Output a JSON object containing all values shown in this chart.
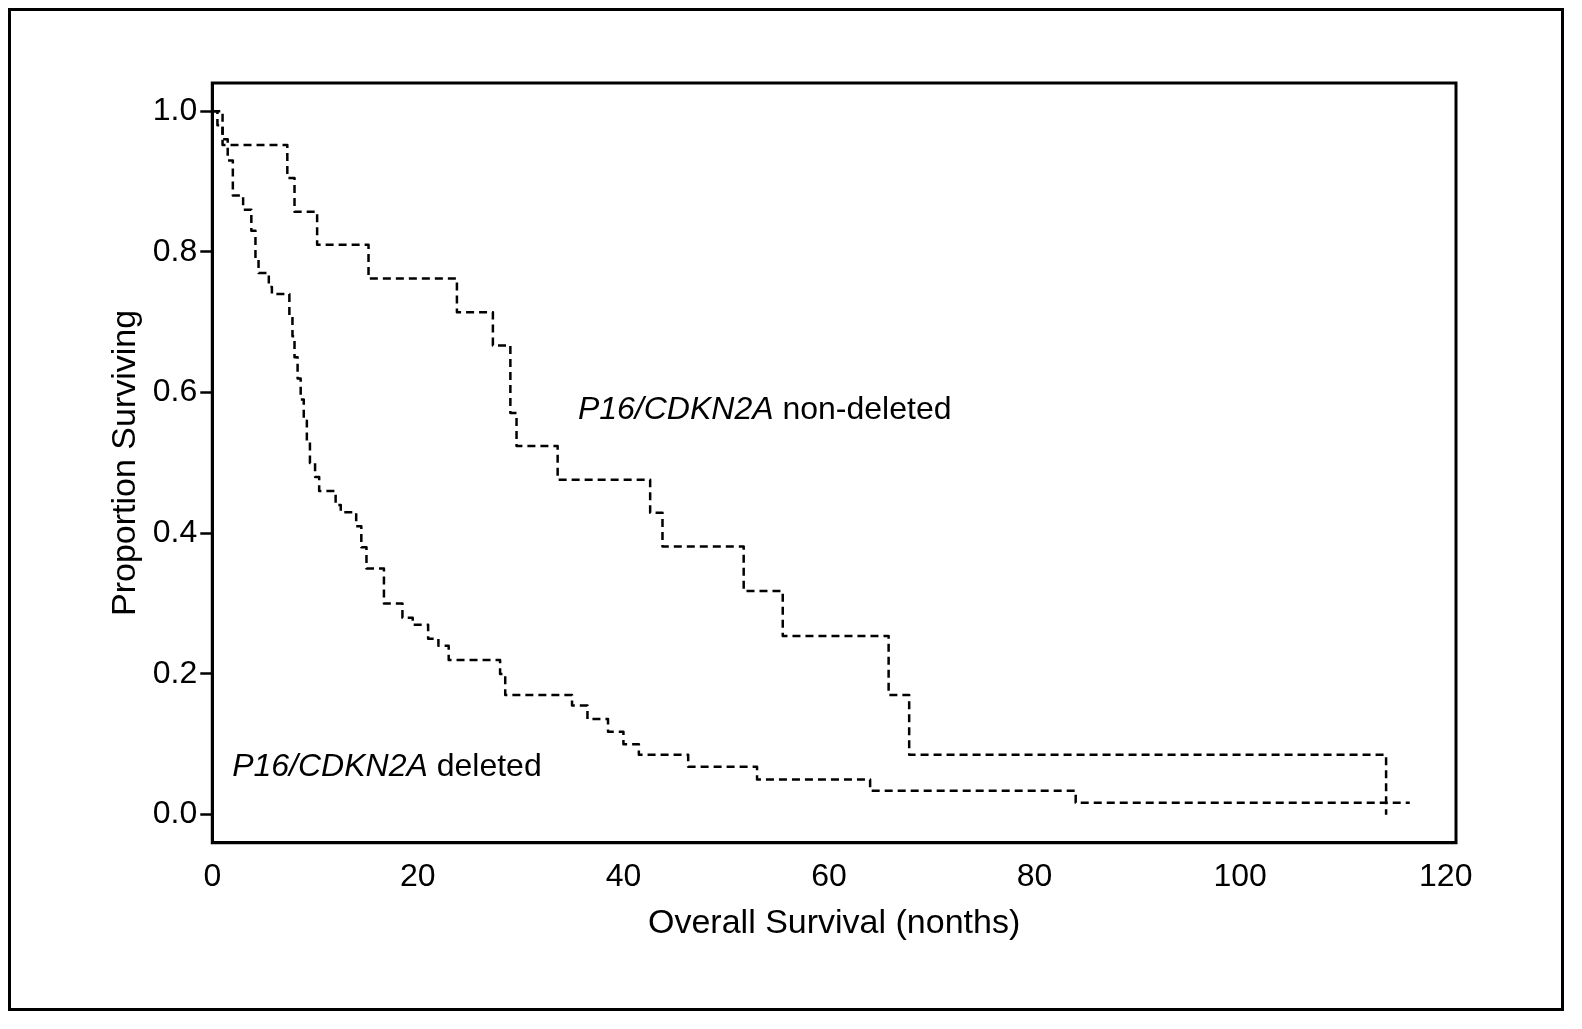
{
  "chart_data": {
    "type": "step",
    "xlabel": "Overall Survival (nonths)",
    "ylabel": "Proportion Surviving",
    "xlim": [
      0,
      121
    ],
    "xticks": [
      0,
      20,
      40,
      60,
      80,
      100,
      120
    ],
    "ylim": [
      -0.04,
      1.04
    ],
    "yticks": [
      {
        "value": 0,
        "label": "0.0"
      },
      {
        "value": 0.2,
        "label": "0.2"
      },
      {
        "value": 0.4,
        "label": "0.4"
      },
      {
        "value": 0.6,
        "label": "0.6"
      },
      {
        "value": 0.8,
        "label": "0.8"
      },
      {
        "value": 1,
        "label": "1.0"
      }
    ],
    "grid": false,
    "legend": false,
    "line_style": "dashed",
    "marker": "none",
    "series": [
      {
        "name": "P16/CDKN2A deleted",
        "color": "#000000",
        "x": [
          0,
          0.5,
          1,
          1.5,
          2,
          3,
          3.8,
          4.2,
          4.5,
          5.5,
          5.8,
          7.5,
          7.8,
          8,
          8.3,
          8.6,
          8.9,
          9.2,
          9.5,
          10,
          10.4,
          12,
          12.5,
          14,
          14.5,
          15,
          16.7,
          18.5,
          19.5,
          21,
          22,
          23,
          28,
          28.5,
          35,
          36.5,
          38.5,
          40,
          41.5,
          46.3,
          53,
          64,
          84,
          116.5
        ],
        "values": [
          1,
          0.98,
          0.96,
          0.93,
          0.88,
          0.86,
          0.83,
          0.79,
          0.77,
          0.75,
          0.74,
          0.71,
          0.68,
          0.65,
          0.62,
          0.59,
          0.56,
          0.53,
          0.5,
          0.48,
          0.46,
          0.44,
          0.43,
          0.41,
          0.38,
          0.35,
          0.3,
          0.28,
          0.27,
          0.25,
          0.24,
          0.22,
          0.2,
          0.17,
          0.155,
          0.136,
          0.118,
          0.1,
          0.085,
          0.068,
          0.05,
          0.034,
          0.017,
          0.017
        ]
      },
      {
        "name": "P16/CDKN2A non-deleted",
        "color": "#000000",
        "x": [
          0,
          1,
          7.3,
          8,
          10.2,
          15.2,
          23.8,
          27.3,
          29,
          29.6,
          33.6,
          42.6,
          43.8,
          51.7,
          55.5,
          65.8,
          67.8,
          114.2
        ],
        "values": [
          1,
          0.952,
          0.905,
          0.857,
          0.81,
          0.762,
          0.714,
          0.667,
          0.571,
          0.524,
          0.476,
          0.429,
          0.381,
          0.318,
          0.254,
          0.17,
          0.085,
          0
        ]
      }
    ]
  }
}
